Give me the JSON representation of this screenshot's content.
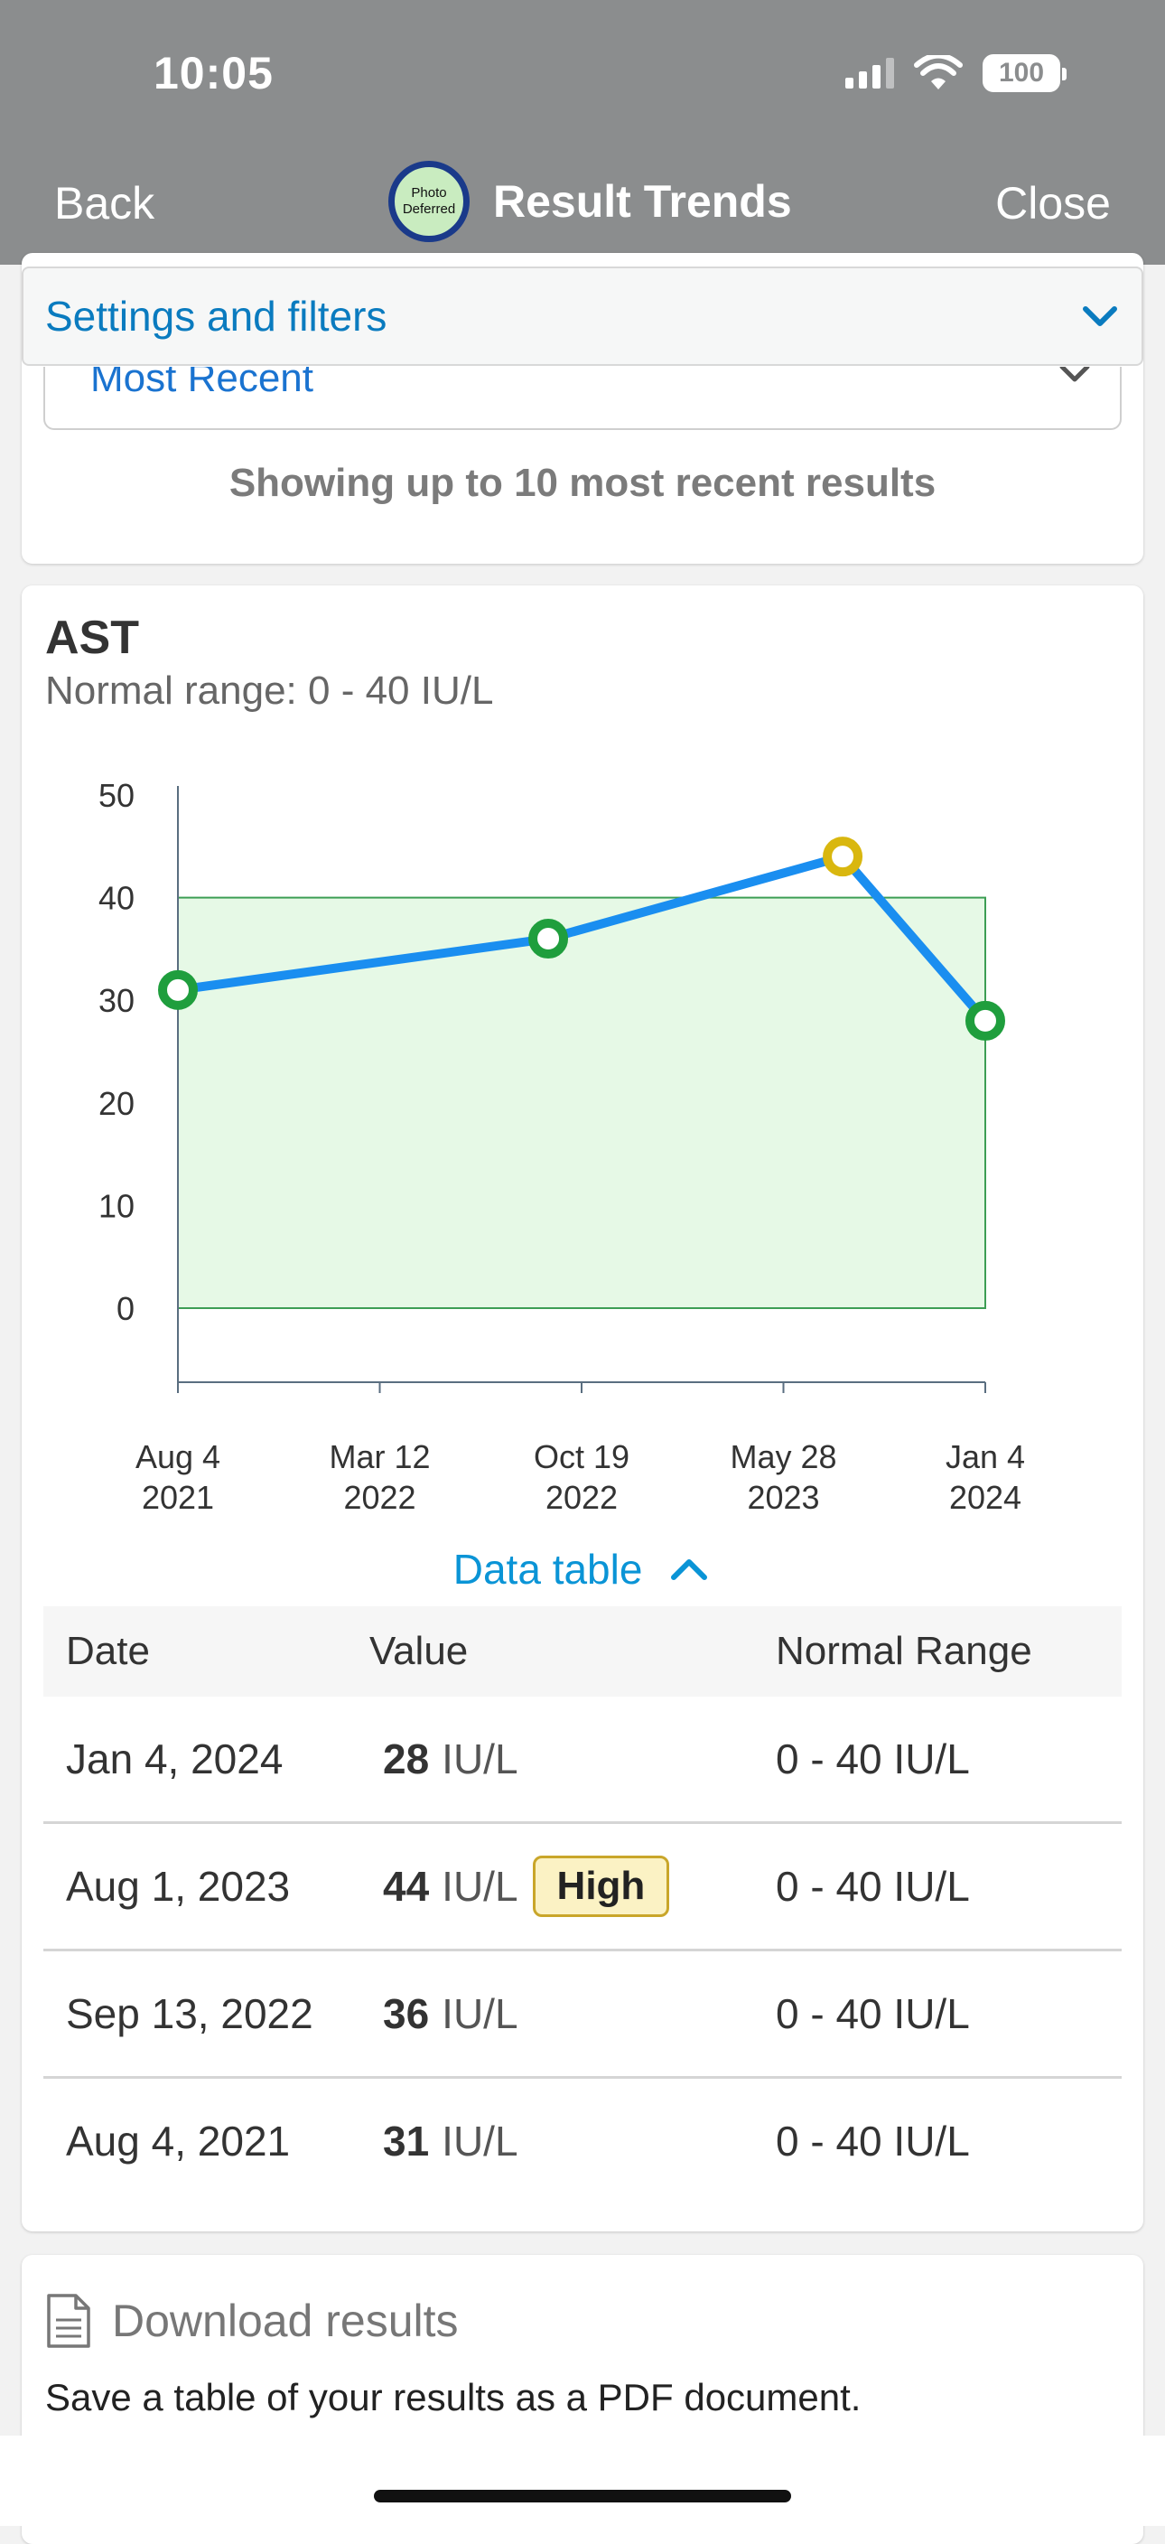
{
  "status_bar": {
    "time": "10:05",
    "battery": "100"
  },
  "nav": {
    "back": "Back",
    "title": "Result Trends",
    "close": "Close",
    "avatar_line1": "Photo",
    "avatar_line2": "Deferred"
  },
  "settings": {
    "header": "Settings and filters",
    "selected_option": "Most Recent",
    "note": "Showing up to 10 most recent results"
  },
  "result": {
    "test_name": "AST",
    "normal_range_text": "Normal range: 0 - 40 IU/L"
  },
  "chart_data": {
    "type": "line",
    "y_ticks": [
      "50",
      "40",
      "30",
      "20",
      "10",
      "0"
    ],
    "x_ticks": [
      {
        "line1": "Aug 4",
        "line2": "2021"
      },
      {
        "line1": "Mar 12",
        "line2": "2022"
      },
      {
        "line1": "Oct 19",
        "line2": "2022"
      },
      {
        "line1": "May 28",
        "line2": "2023"
      },
      {
        "line1": "Jan 4",
        "line2": "2024"
      }
    ],
    "ylim": [
      0,
      50
    ],
    "normal_range": [
      0,
      40
    ],
    "points": [
      {
        "date": "2021-08-04",
        "value": 31,
        "status": "normal"
      },
      {
        "date": "2022-09-13",
        "value": 36,
        "status": "normal"
      },
      {
        "date": "2023-08-01",
        "value": 44,
        "status": "high"
      },
      {
        "date": "2024-01-04",
        "value": 28,
        "status": "normal"
      }
    ],
    "colors": {
      "line": "#1a8ef0",
      "normal_point": "#1f9e3d",
      "high_point": "#d9b70f",
      "band_fill": "#e6f9e6",
      "band_stroke": "#3d9e55"
    }
  },
  "data_table": {
    "toggle_label": "Data table",
    "headers": {
      "date": "Date",
      "value": "Value",
      "range": "Normal Range"
    },
    "rows": [
      {
        "date": "Jan 4, 2024",
        "value": "28",
        "unit": "IU/L",
        "flag": "",
        "range": "0 - 40 IU/L"
      },
      {
        "date": "Aug 1, 2023",
        "value": "44",
        "unit": "IU/L",
        "flag": "High",
        "range": "0 - 40 IU/L"
      },
      {
        "date": "Sep 13, 2022",
        "value": "36",
        "unit": "IU/L",
        "flag": "",
        "range": "0 - 40 IU/L"
      },
      {
        "date": "Aug 4, 2021",
        "value": "31",
        "unit": "IU/L",
        "flag": "",
        "range": "0 - 40 IU/L"
      }
    ]
  },
  "download": {
    "title": "Download results",
    "description": "Save a table of your results as a PDF document."
  }
}
